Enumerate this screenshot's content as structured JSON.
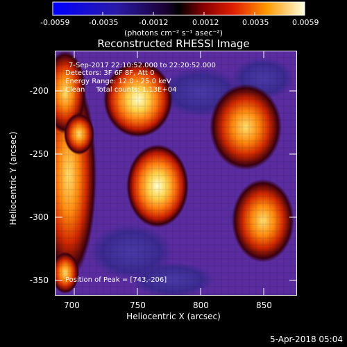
{
  "colorbar": {
    "ticks": [
      "-0.0059",
      "-0.0035",
      "-0.0012",
      "0.0012",
      "0.0035",
      "0.0059"
    ],
    "units_text": "(photons cm⁻² s⁻¹ asec⁻²)"
  },
  "plot": {
    "title": "Reconstructed RHESSI Image",
    "xlabel": "Heliocentric X (arcsec)",
    "ylabel": "Heliocentric Y (arcsec)",
    "xticks": [
      "700",
      "750",
      "800",
      "850"
    ],
    "yticks": [
      "-200",
      "-250",
      "-300",
      "-350"
    ]
  },
  "info": {
    "time": "7-Sep-2017 22:10:52.000 to 22:20:52.000",
    "detectors": "Detectors: 3F 6F 8F, Att 0",
    "energy": "Energy Range: 12.0 - 25.0 keV",
    "method": "Clean     Total counts: 1.13E+04",
    "peak": "Position of Peak = [743,-206]"
  },
  "footer": {
    "timestamp": "5-Apr-2018 05:04"
  }
}
